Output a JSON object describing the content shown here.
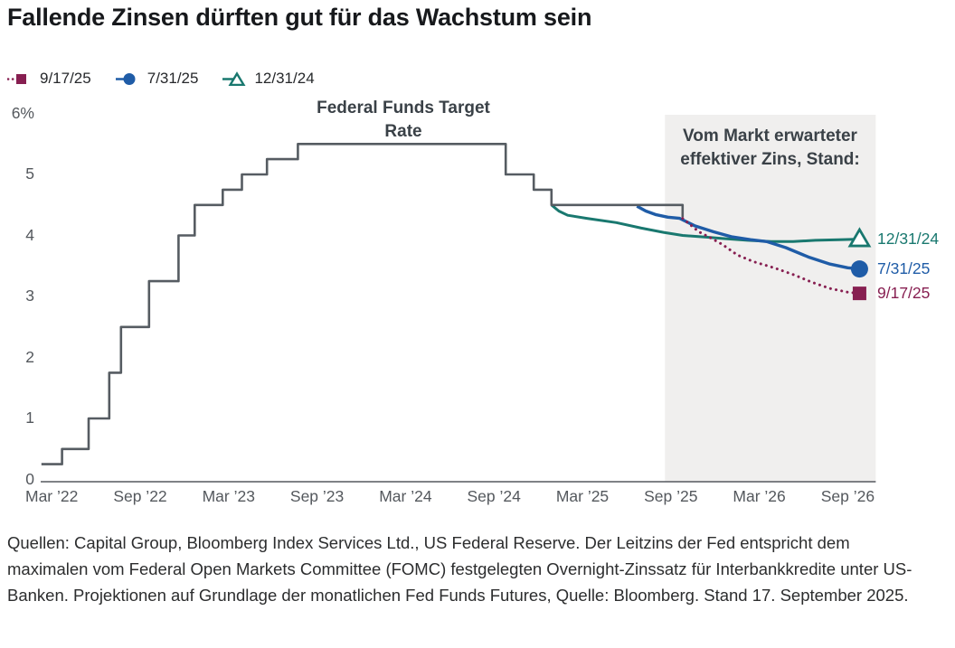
{
  "title": "Fallende Zinsen dürften gut für das Wachstum sein",
  "colors": {
    "background": "#ffffff",
    "region_fill": "#f0efee",
    "axis": "#55595e",
    "history_gray": "#565c62",
    "teal": "#19786f",
    "blue": "#1f5ca7",
    "maroon": "#871f51"
  },
  "legend": {
    "items": [
      {
        "id": "9-17-25",
        "label": "9/17/25",
        "color": "#871f51",
        "marker": "square",
        "line": "dotted"
      },
      {
        "id": "7-31-25",
        "label": "7/31/25",
        "color": "#1f5ca7",
        "marker": "circle",
        "line": "solid"
      },
      {
        "id": "12-31-24",
        "label": "12/31/24",
        "color": "#19786f",
        "marker": "triangle-open",
        "line": "solid"
      }
    ]
  },
  "chart_data": {
    "type": "line",
    "title": "Federal Funds Target Rate",
    "unit": "%",
    "ylim": [
      0,
      6
    ],
    "xlabel": "",
    "ylabel": "",
    "grid": false,
    "y_ticks": [
      {
        "value": 0,
        "label": "0"
      },
      {
        "value": 1,
        "label": "1"
      },
      {
        "value": 2,
        "label": "2"
      },
      {
        "value": 3,
        "label": "3"
      },
      {
        "value": 4,
        "label": "4"
      },
      {
        "value": 5,
        "label": "5"
      },
      {
        "value": 6,
        "label": "6%"
      }
    ],
    "x_ticks": [
      {
        "t": 0,
        "label": "Mar ’22"
      },
      {
        "t": 6,
        "label": "Sep ’22"
      },
      {
        "t": 12,
        "label": "Mar ’23"
      },
      {
        "t": 18,
        "label": "Sep ’23"
      },
      {
        "t": 24,
        "label": "Mar ’24"
      },
      {
        "t": 30,
        "label": "Sep ’24"
      },
      {
        "t": 36,
        "label": "Mar ’25"
      },
      {
        "t": 42,
        "label": "Sep ’25"
      },
      {
        "t": 48,
        "label": "Mar ’26"
      },
      {
        "t": 54,
        "label": "Sep ’26"
      }
    ],
    "projection_region": {
      "label": "Vom Markt erwarteter effektiver Zins, Stand:",
      "t_start": 41.6,
      "t_end": 55.9
    },
    "series": [
      {
        "id": "fed-funds-target-rate",
        "name": "Federal Funds Target Rate",
        "role": "history",
        "color": "#565c62",
        "line": "step",
        "width": 2.6,
        "marker": "none",
        "points": [
          [
            -0.7,
            0.25
          ],
          [
            0.7,
            0.25
          ],
          [
            0.7,
            0.5
          ],
          [
            2.5,
            0.5
          ],
          [
            2.5,
            1
          ],
          [
            3.9,
            1
          ],
          [
            3.9,
            1.75
          ],
          [
            4.7,
            1.75
          ],
          [
            4.7,
            2.5
          ],
          [
            6.6,
            2.5
          ],
          [
            6.6,
            3.25
          ],
          [
            8.6,
            3.25
          ],
          [
            8.6,
            4
          ],
          [
            9.7,
            4
          ],
          [
            9.7,
            4.5
          ],
          [
            11.6,
            4.5
          ],
          [
            11.6,
            4.75
          ],
          [
            12.9,
            4.75
          ],
          [
            12.9,
            5
          ],
          [
            14.6,
            5
          ],
          [
            14.6,
            5.25
          ],
          [
            16.7,
            5.25
          ],
          [
            16.7,
            5.5
          ],
          [
            30.8,
            5.5
          ],
          [
            30.8,
            5
          ],
          [
            32.7,
            5
          ],
          [
            32.7,
            4.75
          ],
          [
            33.9,
            4.75
          ],
          [
            33.9,
            4.5
          ],
          [
            42.8,
            4.5
          ],
          [
            42.8,
            4.3
          ]
        ]
      },
      {
        "id": "proj-12-31-24",
        "name": "12/31/24",
        "role": "projection",
        "color": "#19786f",
        "line": "solid",
        "width": 3,
        "marker": "triangle-open",
        "end_label": "12/31/24",
        "points": [
          [
            33.9,
            4.5
          ],
          [
            34.4,
            4.4
          ],
          [
            35,
            4.33
          ],
          [
            36.3,
            4.28
          ],
          [
            38.3,
            4.21
          ],
          [
            40,
            4.12
          ],
          [
            41.5,
            4.05
          ],
          [
            42.8,
            4.0
          ],
          [
            44.5,
            3.97
          ],
          [
            45.5,
            3.95
          ],
          [
            47.2,
            3.92
          ],
          [
            48.8,
            3.9
          ],
          [
            50.3,
            3.9
          ],
          [
            51.8,
            3.92
          ],
          [
            53.4,
            3.93
          ],
          [
            54.8,
            3.94
          ]
        ]
      },
      {
        "id": "proj-7-31-25",
        "name": "7/31/25",
        "role": "projection",
        "color": "#1f5ca7",
        "line": "solid",
        "width": 3.4,
        "marker": "circle",
        "end_label": "7/31/25",
        "points": [
          [
            39.7,
            4.48
          ],
          [
            40.3,
            4.4
          ],
          [
            41,
            4.34
          ],
          [
            41.8,
            4.3
          ],
          [
            42.6,
            4.28
          ],
          [
            43.6,
            4.16
          ],
          [
            44.9,
            4.06
          ],
          [
            46.1,
            3.98
          ],
          [
            47.4,
            3.93
          ],
          [
            48.5,
            3.9
          ],
          [
            49.8,
            3.8
          ],
          [
            51.4,
            3.64
          ],
          [
            52.8,
            3.53
          ],
          [
            54,
            3.47
          ],
          [
            54.8,
            3.45
          ]
        ]
      },
      {
        "id": "proj-9-17-25",
        "name": "9/17/25",
        "role": "projection",
        "color": "#871f51",
        "line": "dotted",
        "width": 3,
        "marker": "square",
        "end_label": "9/17/25",
        "points": [
          [
            42.8,
            4.28
          ],
          [
            43.3,
            4.18
          ],
          [
            43.9,
            4.06
          ],
          [
            44.7,
            3.96
          ],
          [
            45.5,
            3.85
          ],
          [
            46.5,
            3.68
          ],
          [
            47.6,
            3.57
          ],
          [
            49,
            3.47
          ],
          [
            50.4,
            3.35
          ],
          [
            51.6,
            3.23
          ],
          [
            52.8,
            3.13
          ],
          [
            54,
            3.07
          ],
          [
            54.8,
            3.05
          ]
        ]
      }
    ]
  },
  "footnote": "Quellen: Capital Group, Bloomberg Index Services Ltd., US Federal Reserve. Der Leitzins der Fed entspricht dem maximalen vom Federal Open Markets Committee (FOMC) festgelegten Overnight-Zinssatz für Interbankkredite unter US-Banken. Projektionen auf Grundlage der monatlichen Fed Funds Futures, Quelle: Bloomberg. Stand 17. September 2025."
}
